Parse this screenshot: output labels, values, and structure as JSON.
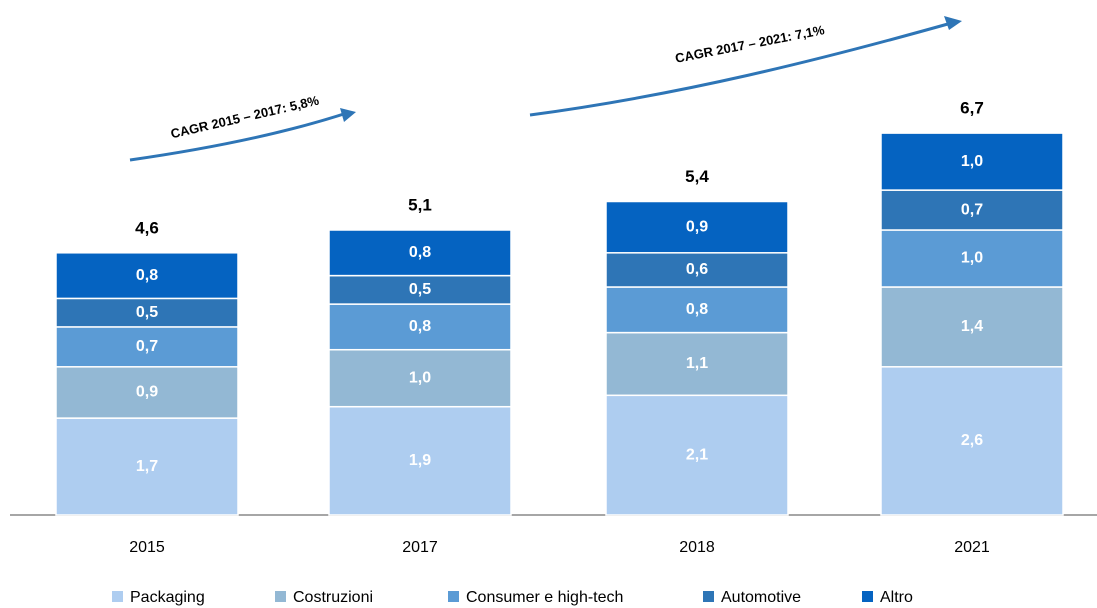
{
  "chart_data": {
    "type": "stacked_bar",
    "categories": [
      "2015",
      "2017",
      "2018",
      "2021"
    ],
    "series": [
      {
        "name": "Packaging",
        "color": "#aecdf0",
        "values": [
          1.7,
          1.9,
          2.1,
          2.6
        ],
        "value_labels": [
          "1,7",
          "1,9",
          "2,1",
          "2,6"
        ]
      },
      {
        "name": "Costruzioni",
        "color": "#93b8d4",
        "values": [
          0.9,
          1.0,
          1.1,
          1.4
        ],
        "value_labels": [
          "0,9",
          "1,0",
          "1,1",
          "1,4"
        ]
      },
      {
        "name": "Consumer e high-tech",
        "color": "#5b9bd5",
        "values": [
          0.7,
          0.8,
          0.8,
          1.0
        ],
        "value_labels": [
          "0,7",
          "0,8",
          "0,8",
          "1,0"
        ]
      },
      {
        "name": "Automotive",
        "color": "#2e75b6",
        "values": [
          0.5,
          0.5,
          0.6,
          0.7
        ],
        "value_labels": [
          "0,5",
          "0,5",
          "0,6",
          "0,7"
        ]
      },
      {
        "name": "Altro",
        "color": "#0563c1",
        "values": [
          0.8,
          0.8,
          0.9,
          1.0
        ],
        "value_labels": [
          "0,8",
          "0,8",
          "0,9",
          "1,0"
        ]
      }
    ],
    "totals": [
      4.6,
      5.1,
      5.4,
      6.7
    ],
    "total_labels": [
      "4,6",
      "5,1",
      "5,4",
      "6,7"
    ],
    "annotations": [
      "CAGR 2015 – 2017: 5,8%",
      "CAGR 2017 – 2021: 7,1%"
    ],
    "legend": "bottom"
  }
}
